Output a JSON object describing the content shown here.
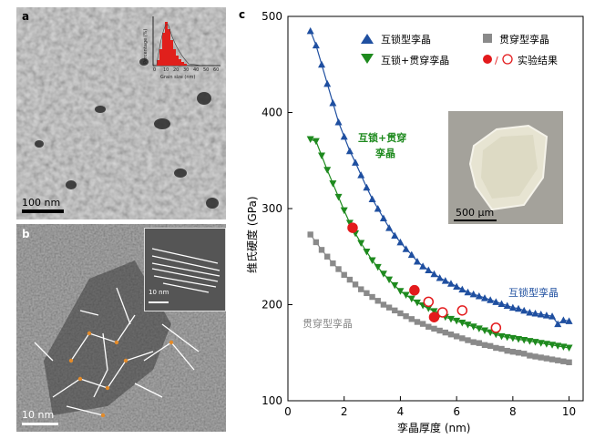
{
  "panel_a": {
    "label": "a",
    "scale_bar": "100 nm",
    "inset": {
      "ylabel": "Percentage (%)",
      "xlabel": "Grain size (nm)",
      "x_ticks": [
        "0",
        "10",
        "20",
        "30",
        "40",
        "50",
        "60"
      ]
    }
  },
  "panel_b": {
    "label": "b",
    "scale_bar": "10 nm",
    "inset_scale_bar": "10 nm"
  },
  "panel_c": {
    "label": "c",
    "photo_scale_bar": "500 µm",
    "annot_hybrid": [
      "互锁+贯穿",
      "孪晶"
    ],
    "annot_interlock": "互锁型孪晶",
    "annot_penetrate": "贯穿型孪晶"
  },
  "chart_data": {
    "type": "scatter",
    "xlabel": "孪晶厚度 (nm)",
    "ylabel": "维氏硬度 (GPa)",
    "xlim": [
      0,
      10.5
    ],
    "ylim": [
      100,
      500
    ],
    "x_ticks": [
      0,
      2,
      4,
      6,
      8,
      10
    ],
    "y_ticks": [
      100,
      200,
      300,
      400,
      500
    ],
    "legend_position": "top",
    "series": [
      {
        "name": "互锁型孪晶",
        "marker": "triangle-up",
        "color": "#1f4fa0",
        "x": [
          0.8,
          1.0,
          1.2,
          1.4,
          1.6,
          1.8,
          2.0,
          2.2,
          2.4,
          2.6,
          2.8,
          3.0,
          3.2,
          3.4,
          3.6,
          3.8,
          4.0,
          4.2,
          4.4,
          4.6,
          4.8,
          5.0,
          5.2,
          5.4,
          5.6,
          5.8,
          6.0,
          6.2,
          6.4,
          6.6,
          6.8,
          7.0,
          7.2,
          7.4,
          7.6,
          7.8,
          8.0,
          8.2,
          8.4,
          8.6,
          8.8,
          9.0,
          9.2,
          9.4,
          9.6,
          9.8,
          10.0
        ],
        "y": [
          485,
          470,
          450,
          430,
          410,
          390,
          375,
          360,
          348,
          335,
          322,
          310,
          300,
          290,
          280,
          272,
          265,
          258,
          252,
          245,
          240,
          236,
          232,
          228,
          225,
          222,
          219,
          216,
          213,
          211,
          209,
          207,
          205,
          203,
          201,
          199,
          197,
          196,
          194,
          192,
          191,
          190,
          189,
          188,
          180,
          184,
          183
        ]
      },
      {
        "name": "贯穿型孪晶",
        "marker": "square",
        "color": "#8a8a8a",
        "x": [
          0.8,
          1.0,
          1.2,
          1.4,
          1.6,
          1.8,
          2.0,
          2.2,
          2.4,
          2.6,
          2.8,
          3.0,
          3.2,
          3.4,
          3.6,
          3.8,
          4.0,
          4.2,
          4.4,
          4.6,
          4.8,
          5.0,
          5.2,
          5.4,
          5.6,
          5.8,
          6.0,
          6.2,
          6.4,
          6.6,
          6.8,
          7.0,
          7.2,
          7.4,
          7.6,
          7.8,
          8.0,
          8.2,
          8.4,
          8.6,
          8.8,
          9.0,
          9.2,
          9.4,
          9.6,
          9.8,
          10.0
        ],
        "y": [
          273,
          265,
          257,
          250,
          243,
          237,
          231,
          226,
          221,
          216,
          212,
          208,
          204,
          200,
          197,
          194,
          191,
          188,
          185,
          182,
          180,
          177,
          175,
          173,
          171,
          169,
          167,
          165,
          163,
          161,
          160,
          158,
          157,
          155,
          154,
          152,
          151,
          150,
          149,
          147,
          146,
          145,
          144,
          143,
          142,
          141,
          140
        ]
      },
      {
        "name": "互锁+贯穿孪晶",
        "marker": "triangle-down",
        "color": "#1e8a1e",
        "x": [
          0.8,
          1.0,
          1.2,
          1.4,
          1.6,
          1.8,
          2.0,
          2.2,
          2.4,
          2.6,
          2.8,
          3.0,
          3.2,
          3.4,
          3.6,
          3.8,
          4.0,
          4.2,
          4.4,
          4.6,
          4.8,
          5.0,
          5.2,
          5.4,
          5.6,
          5.8,
          6.0,
          6.2,
          6.4,
          6.6,
          6.8,
          7.0,
          7.2,
          7.4,
          7.6,
          7.8,
          8.0,
          8.2,
          8.4,
          8.6,
          8.8,
          9.0,
          9.2,
          9.4,
          9.6,
          9.8,
          10.0
        ],
        "y": [
          372,
          370,
          355,
          340,
          326,
          312,
          298,
          285,
          274,
          264,
          255,
          246,
          239,
          232,
          226,
          220,
          214,
          210,
          206,
          202,
          199,
          196,
          193,
          190,
          187,
          185,
          183,
          181,
          179,
          177,
          175,
          173,
          171,
          169,
          167,
          166,
          165,
          164,
          163,
          162,
          161,
          160,
          159,
          158,
          157,
          156,
          155
        ]
      },
      {
        "name": "实验结果",
        "marker": "circle",
        "color": "#e31a1c",
        "points": [
          {
            "x": 2.3,
            "y": 280,
            "filled": true
          },
          {
            "x": 4.5,
            "y": 215,
            "filled": true
          },
          {
            "x": 5.2,
            "y": 187,
            "filled": true
          },
          {
            "x": 5.0,
            "y": 203,
            "filled": false
          },
          {
            "x": 5.5,
            "y": 192,
            "filled": false
          },
          {
            "x": 6.2,
            "y": 194,
            "filled": false
          },
          {
            "x": 7.4,
            "y": 176,
            "filled": false
          }
        ]
      }
    ]
  }
}
